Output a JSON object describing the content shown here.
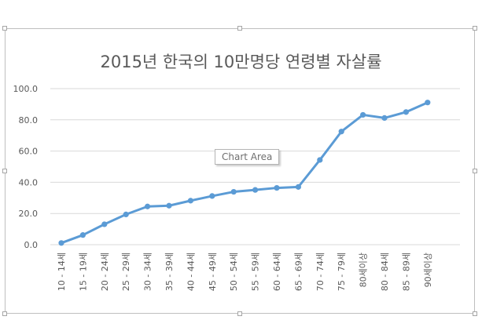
{
  "chart_data": {
    "type": "line",
    "title": "2015년 한국의 10만명당 연령별 자살률",
    "categories": [
      "10 - 14세",
      "15 - 19세",
      "20 - 24세",
      "25 - 29세",
      "30 - 34세",
      "35 - 39세",
      "40 - 44세",
      "45 - 49세",
      "50 - 54세",
      "55 - 59세",
      "60 - 64세",
      "65 - 69세",
      "70 - 74세",
      "75 - 79세",
      "80세이상",
      "80 - 84세",
      "85 - 89세",
      "90세이상"
    ],
    "values": [
      1.1,
      6.2,
      13.1,
      19.4,
      24.5,
      25.0,
      28.2,
      31.2,
      33.9,
      35.1,
      36.4,
      37.0,
      54.3,
      72.5,
      83.2,
      81.2,
      85.0,
      91.1
    ],
    "ylim": [
      0,
      100
    ],
    "yticks": [
      "100.0",
      "80.0",
      "60.0",
      "40.0",
      "20.0",
      "0.0"
    ],
    "ytick_values": [
      100,
      80,
      60,
      40,
      20,
      0
    ],
    "grid": true,
    "legend": "none",
    "colors": {
      "line": "#5b9bd5",
      "grid": "#d9d9d9",
      "text": "#595959"
    }
  },
  "tooltip": {
    "text": "Chart Area"
  }
}
